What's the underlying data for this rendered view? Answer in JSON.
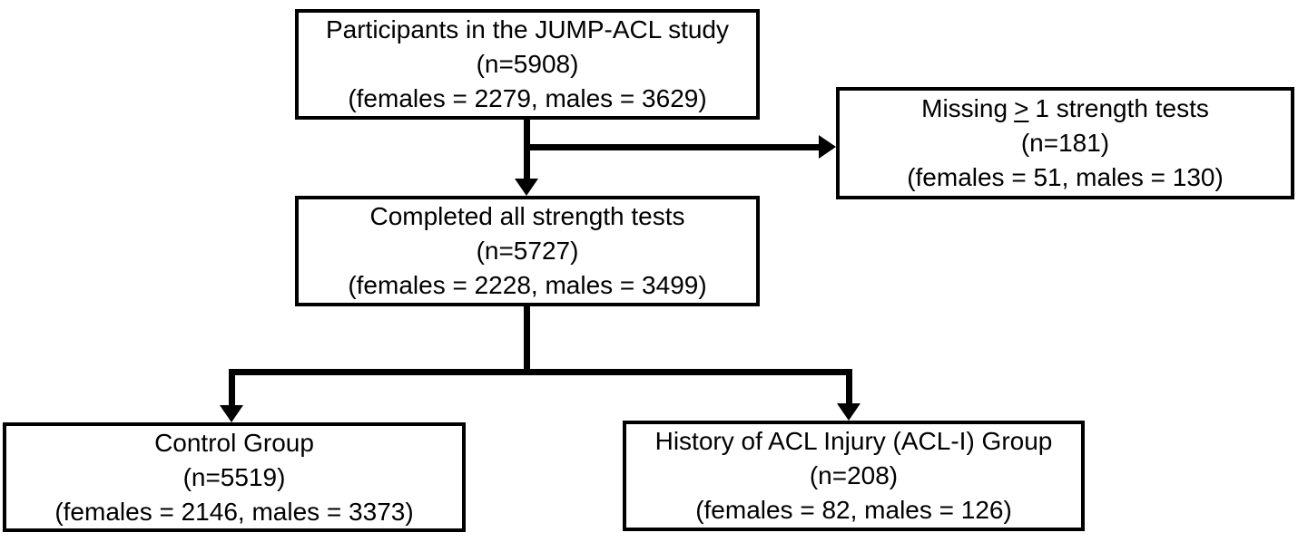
{
  "figure": {
    "background_color": "#ffffff",
    "line_color": "#000000",
    "text_color": "#000000",
    "boxes": {
      "participants": {
        "title": "Participants in the JUMP-ACL study",
        "n": "(n=5908)",
        "breakdown": "(females = 2279, males = 3629)"
      },
      "missing_strength_tests": {
        "title_prefix": "Missing",
        "gte_symbol": ">",
        "title_suffix": "1 strength tests",
        "n": "(n=181)",
        "breakdown": "(females = 51, males = 130)"
      },
      "completed_strength_tests": {
        "title": "Completed all strength tests",
        "n": "(n=5727)",
        "breakdown": "(females = 2228, males = 3499)"
      },
      "control_group": {
        "title": "Control Group",
        "n": "(n=5519)",
        "breakdown": "(females = 2146, males = 3373)"
      },
      "acl_injury_group": {
        "title": "History of ACL Injury (ACL-I) Group",
        "n": "(n=208)",
        "breakdown": "(females = 82, males = 126)"
      }
    }
  }
}
